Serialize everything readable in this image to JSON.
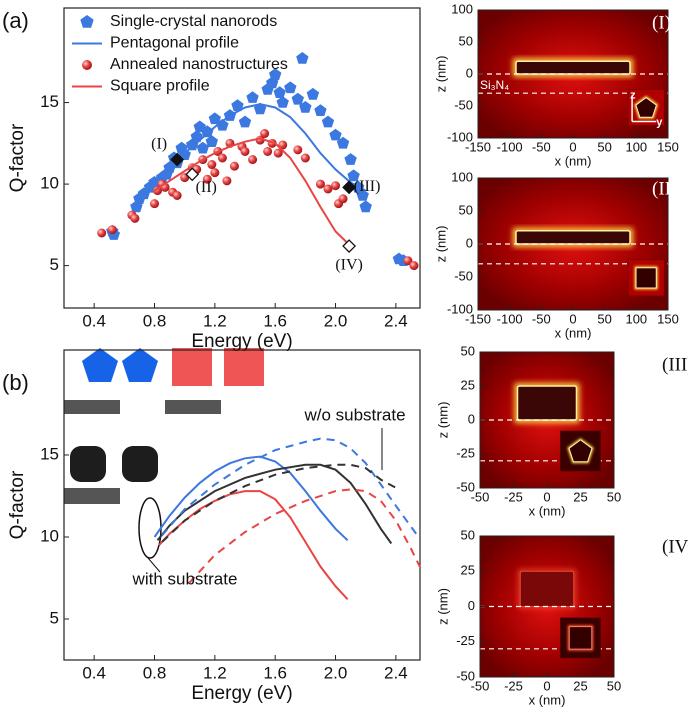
{
  "chart_data": [
    {
      "type": "scatter",
      "panel": "(a)",
      "xlabel": "Energy (eV)",
      "ylabel": "Q-factor",
      "xlim": [
        0.2,
        2.56
      ],
      "ylim": [
        2.4,
        20.8
      ],
      "xticks": [
        0.4,
        0.8,
        1.2,
        1.6,
        {
          "value": 2,
          "label": "2.0"
        },
        2.4
      ],
      "yticks": [
        5,
        10,
        15
      ],
      "legend": "upper left",
      "series": [
        {
          "name": "Single-crystal nanorods",
          "color": "#3b78e0",
          "mode": "markers",
          "marker": "pentagon",
          "x": [
            0.52,
            0.53,
            0.68,
            0.7,
            0.73,
            0.77,
            0.8,
            0.85,
            0.88,
            0.9,
            0.93,
            0.95,
            0.98,
            1.0,
            1.05,
            1.08,
            1.1,
            1.12,
            1.15,
            1.18,
            1.2,
            1.25,
            1.3,
            1.35,
            1.4,
            1.45,
            1.5,
            1.55,
            1.58,
            1.6,
            1.63,
            1.65,
            1.7,
            1.75,
            1.78,
            1.8,
            1.85,
            1.9,
            1.95,
            2.0,
            2.05,
            2.1,
            2.12,
            2.15,
            2.18,
            2.2,
            2.42,
            2.45
          ],
          "values": [
            7.1,
            6.9,
            8.6,
            9.1,
            9.4,
            9.8,
            10.1,
            10.4,
            10.6,
            11.0,
            11.6,
            11.3,
            12.2,
            11.8,
            12.4,
            12.9,
            13.5,
            12.2,
            13.2,
            12.6,
            14.0,
            13.6,
            14.2,
            14.8,
            13.8,
            15.3,
            14.6,
            15.8,
            16.2,
            16.7,
            15.6,
            15.0,
            15.9,
            15.2,
            17.7,
            14.7,
            15.5,
            14.5,
            13.8,
            13.0,
            12.5,
            11.5,
            10.5,
            9.8,
            9.3,
            8.6,
            5.4,
            5.3
          ]
        },
        {
          "name": "Pentagonal profile",
          "color": "#3b78e0",
          "mode": "line",
          "x": [
            0.8,
            0.9,
            1.0,
            1.1,
            1.2,
            1.3,
            1.4,
            1.5,
            1.6,
            1.7,
            1.8,
            1.9,
            2.0,
            2.1,
            2.2
          ],
          "values": [
            10.1,
            11.0,
            11.9,
            12.7,
            13.5,
            14.2,
            14.7,
            14.9,
            14.7,
            14.1,
            13.1,
            11.9,
            10.9,
            10.1,
            9.6
          ]
        },
        {
          "name": "Annealed nanostructures",
          "color": "#e84545",
          "mode": "markers",
          "marker": "ball",
          "x": [
            0.45,
            0.52,
            0.65,
            0.67,
            0.8,
            0.82,
            0.85,
            0.87,
            0.92,
            0.95,
            1.0,
            1.05,
            1.08,
            1.12,
            1.15,
            1.18,
            1.2,
            1.22,
            1.25,
            1.28,
            1.3,
            1.33,
            1.38,
            1.4,
            1.45,
            1.5,
            1.53,
            1.55,
            1.58,
            1.62,
            1.65,
            1.75,
            1.8,
            1.9,
            1.95,
            2.0,
            2.02,
            2.05,
            2.48,
            2.52
          ],
          "values": [
            7.0,
            7.2,
            8.1,
            7.9,
            8.8,
            9.6,
            10.0,
            9.8,
            9.5,
            9.3,
            10.4,
            11.0,
            10.9,
            11.5,
            10.3,
            11.2,
            10.7,
            12.0,
            11.6,
            10.2,
            12.5,
            11.1,
            12.3,
            12.0,
            11.5,
            12.7,
            13.1,
            12.0,
            12.5,
            11.9,
            12.4,
            12.1,
            11.6,
            10.0,
            9.7,
            9.9,
            8.8,
            9.1,
            5.3,
            5.0
          ]
        },
        {
          "name": "Square profile",
          "color": "#e84545",
          "mode": "line",
          "x": [
            0.8,
            0.9,
            1.0,
            1.1,
            1.2,
            1.3,
            1.4,
            1.5,
            1.6,
            1.7,
            1.8,
            1.9,
            2.0,
            2.1
          ],
          "values": [
            9.6,
            10.2,
            10.8,
            11.4,
            11.9,
            12.3,
            12.6,
            12.8,
            12.5,
            11.6,
            10.2,
            8.6,
            7.1,
            6.2
          ]
        }
      ],
      "points": [
        {
          "label": "(I)",
          "x": 0.95,
          "y": 11.5
        },
        {
          "label": "(II)",
          "x": 1.05,
          "y": 10.6
        },
        {
          "label": "(III)",
          "x": 2.09,
          "y": 9.8
        },
        {
          "label": "(IV)",
          "x": 2.09,
          "y": 6.2
        }
      ]
    },
    {
      "type": "line",
      "panel": "(b)",
      "xlabel": "Energy (eV)",
      "ylabel": "Q-factor",
      "xlim": [
        0.2,
        2.56
      ],
      "ylim": [
        2.5,
        21.4
      ],
      "xticks": [
        0.4,
        0.8,
        1.2,
        1.6,
        {
          "value": 2,
          "label": "2.0"
        },
        2.4
      ],
      "yticks": [
        5,
        10,
        15
      ],
      "series": [
        {
          "color": "#3b78e0",
          "dash": false,
          "x": [
            0.8,
            0.9,
            1.0,
            1.1,
            1.2,
            1.3,
            1.4,
            1.5,
            1.6,
            1.7,
            1.8,
            1.9,
            2.0,
            2.08
          ],
          "values": [
            10.0,
            11.3,
            12.4,
            13.3,
            14.0,
            14.5,
            14.8,
            14.9,
            14.6,
            13.9,
            12.8,
            11.6,
            10.5,
            9.8
          ]
        },
        {
          "color": "#333333",
          "dash": false,
          "x": [
            0.82,
            0.9,
            1.0,
            1.2,
            1.4,
            1.6,
            1.8,
            1.9,
            2.0,
            2.1,
            2.2,
            2.3,
            2.37
          ],
          "values": [
            9.8,
            10.7,
            11.6,
            12.8,
            13.6,
            14.1,
            14.4,
            14.4,
            14.1,
            13.3,
            12.0,
            10.5,
            9.6
          ]
        },
        {
          "color": "#e84545",
          "dash": false,
          "x": [
            0.83,
            0.9,
            1.0,
            1.1,
            1.2,
            1.3,
            1.4,
            1.5,
            1.6,
            1.7,
            1.8,
            1.9,
            2.0,
            2.08
          ],
          "values": [
            9.5,
            10.2,
            11.0,
            11.7,
            12.2,
            12.6,
            12.8,
            12.8,
            12.3,
            11.2,
            9.7,
            8.2,
            7.0,
            6.2
          ]
        },
        {
          "color": "#3b78e0",
          "dash": true,
          "x": [
            0.85,
            1.0,
            1.2,
            1.4,
            1.6,
            1.8,
            1.9,
            2.0,
            2.1,
            2.2,
            2.3,
            2.4,
            2.55
          ],
          "values": [
            10.1,
            11.7,
            13.2,
            14.4,
            15.3,
            15.8,
            16.0,
            15.9,
            15.4,
            14.5,
            13.2,
            11.9,
            10.0
          ]
        },
        {
          "color": "#333333",
          "dash": true,
          "x": [
            0.85,
            1.0,
            1.2,
            1.4,
            1.6,
            1.8,
            2.0,
            2.1,
            2.2,
            2.3,
            2.4
          ],
          "values": [
            9.7,
            11.0,
            12.2,
            13.1,
            13.8,
            14.2,
            14.4,
            14.4,
            14.2,
            13.5,
            13.0
          ]
        },
        {
          "color": "#e84545",
          "dash": true,
          "x": [
            1.03,
            1.2,
            1.4,
            1.6,
            1.8,
            2.0,
            2.1,
            2.2,
            2.3,
            2.4,
            2.5,
            2.58
          ],
          "values": [
            7.2,
            8.9,
            10.3,
            11.4,
            12.2,
            12.8,
            12.9,
            12.8,
            12.2,
            11.0,
            9.3,
            7.8
          ]
        }
      ],
      "annotations": [
        "w/o substrate",
        "with substrate"
      ]
    },
    {
      "type": "heatmap",
      "panel": "(I)",
      "xlabel": "x (nm)",
      "ylabel": "z (nm)",
      "xlim": [
        -150,
        150
      ],
      "ylim": [
        -100,
        100
      ],
      "xticks": [
        -150,
        -100,
        -50,
        0,
        50,
        100,
        150
      ],
      "yticks": [
        -100,
        -50,
        0,
        50,
        100
      ],
      "dashed_lines": [
        0,
        -30
      ],
      "structure": {
        "x": [
          -90,
          90
        ],
        "z": [
          0,
          20
        ]
      },
      "material": "Si₃N₄",
      "inset_axes": [
        "z",
        "y"
      ]
    },
    {
      "type": "heatmap",
      "panel": "(II)",
      "xlabel": "x (nm)",
      "ylabel": "z (nm)",
      "xlim": [
        -150,
        150
      ],
      "ylim": [
        -100,
        100
      ],
      "xticks": [
        -150,
        -100,
        -50,
        0,
        50,
        100,
        150
      ],
      "yticks": [
        -100,
        -50,
        0,
        50,
        100
      ],
      "dashed_lines": [
        0,
        -30
      ],
      "structure": {
        "x": [
          -90,
          90
        ],
        "z": [
          0,
          20
        ]
      }
    },
    {
      "type": "heatmap",
      "panel": "(III)",
      "xlabel": "x (nm)",
      "ylabel": "z (nm)",
      "xlim": [
        -50,
        50
      ],
      "ylim": [
        -50,
        50
      ],
      "xticks": [
        -50,
        -25,
        0,
        25,
        50
      ],
      "yticks": [
        -50,
        -25,
        0,
        25,
        50
      ],
      "dashed_lines": [
        0,
        -30
      ],
      "structure": {
        "x": [
          -22,
          22
        ],
        "z": [
          0,
          25
        ]
      }
    },
    {
      "type": "heatmap",
      "panel": "(IV)",
      "xlabel": "x (nm)",
      "ylabel": "z (nm)",
      "xlim": [
        -50,
        50
      ],
      "ylim": [
        -50,
        50
      ],
      "xticks": [
        -50,
        -25,
        0,
        25,
        50
      ],
      "yticks": [
        -50,
        -25,
        0,
        25,
        50
      ],
      "dashed_lines": [
        0,
        -30
      ],
      "structure": {
        "x": [
          -20,
          20
        ],
        "z": [
          0,
          25
        ]
      }
    }
  ]
}
